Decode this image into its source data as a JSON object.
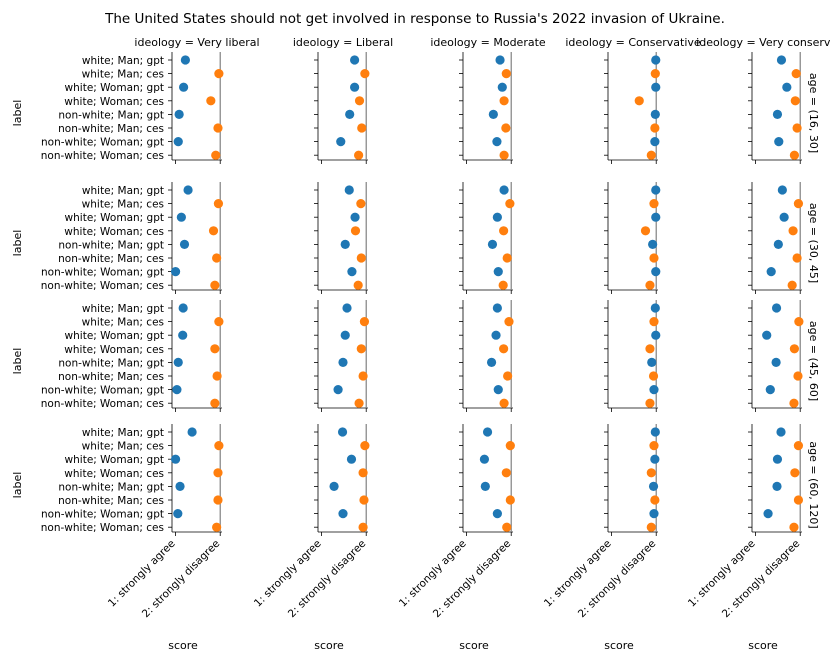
{
  "chart_data": {
    "type": "scatter",
    "title": "The United States should not get involved in response to Russia's 2022 invasion of Ukraine.",
    "ylabel": "label",
    "xlabel": "score",
    "xlim": [
      1,
      2
    ],
    "x_ticks": [
      {
        "value": 1,
        "label": "1: strongly agree"
      },
      {
        "value": 2,
        "label": "2: strongly disagree"
      }
    ],
    "reference_line_x": 2,
    "column_prefix": "ideology = ",
    "row_prefix": "age = ",
    "columns": [
      "Very liberal",
      "Liberal",
      "Moderate",
      "Conservative",
      "Very conservative"
    ],
    "rows": [
      "(16, 30]",
      "(30, 45]",
      "(45, 60]",
      "(60, 120]"
    ],
    "labels": [
      "white; Man; gpt",
      "white; Man; ces",
      "white; Woman; gpt",
      "white; Woman; ces",
      "non-white; Man; gpt",
      "non-white; Man; ces",
      "non-white; Woman; gpt",
      "non-white; Woman; ces"
    ],
    "series": [
      {
        "name": "gpt",
        "color": "#1f77b4"
      },
      {
        "name": "ces",
        "color": "#ff7f0e"
      }
    ],
    "values": [
      [
        [
          {
            "x": 1.22,
            "err": 0.03
          },
          {
            "x": 1.97,
            "err": 0.02
          },
          {
            "x": 1.18,
            "err": 0.03
          },
          {
            "x": 1.79,
            "err": 0.03
          },
          {
            "x": 1.08,
            "err": 0.02
          },
          {
            "x": 1.95,
            "err": 0.02
          },
          {
            "x": 1.06,
            "err": 0.02
          },
          {
            "x": 1.9,
            "err": 0.03
          }
        ],
        [
          {
            "x": 1.74,
            "err": 0.04
          },
          {
            "x": 1.97,
            "err": 0.02
          },
          {
            "x": 1.74,
            "err": 0.03
          },
          {
            "x": 1.85,
            "err": 0.03
          },
          {
            "x": 1.63,
            "err": 0.04
          },
          {
            "x": 1.9,
            "err": 0.02
          },
          {
            "x": 1.43,
            "err": 0.04
          },
          {
            "x": 1.83,
            "err": 0.03
          }
        ],
        [
          {
            "x": 1.75,
            "err": 0.04
          },
          {
            "x": 1.89,
            "err": 0.03
          },
          {
            "x": 1.8,
            "err": 0.03
          },
          {
            "x": 1.84,
            "err": 0.03
          },
          {
            "x": 1.6,
            "err": 0.04
          },
          {
            "x": 1.88,
            "err": 0.02
          },
          {
            "x": 1.68,
            "err": 0.04
          },
          {
            "x": 1.84,
            "err": 0.03
          }
        ],
        [
          {
            "x": 1.99,
            "err": 0.01
          },
          {
            "x": 1.98,
            "err": 0.02
          },
          {
            "x": 1.99,
            "err": 0.01
          },
          {
            "x": 1.62,
            "err": 0.08
          },
          {
            "x": 1.98,
            "err": 0.01
          },
          {
            "x": 1.97,
            "err": 0.02
          },
          {
            "x": 1.97,
            "err": 0.01
          },
          {
            "x": 1.89,
            "err": 0.03
          }
        ],
        [
          {
            "x": 1.58,
            "err": 0.04
          },
          {
            "x": 1.91,
            "err": 0.05
          },
          {
            "x": 1.7,
            "err": 0.04
          },
          {
            "x": 1.89,
            "err": 0.05
          },
          {
            "x": 1.49,
            "err": 0.04
          },
          {
            "x": 1.93,
            "err": 0.03
          },
          {
            "x": 1.52,
            "err": 0.04
          },
          {
            "x": 1.87,
            "err": 0.03
          }
        ]
      ],
      [
        [
          {
            "x": 1.28,
            "err": 0.04
          },
          {
            "x": 1.96,
            "err": 0.02
          },
          {
            "x": 1.13,
            "err": 0.02
          },
          {
            "x": 1.85,
            "err": 0.03
          },
          {
            "x": 1.2,
            "err": 0.03
          },
          {
            "x": 1.92,
            "err": 0.02
          },
          {
            "x": 1.0,
            "err": 0.02
          },
          {
            "x": 1.88,
            "err": 0.03
          }
        ],
        [
          {
            "x": 1.62,
            "err": 0.04
          },
          {
            "x": 1.88,
            "err": 0.02
          },
          {
            "x": 1.75,
            "err": 0.03
          },
          {
            "x": 1.76,
            "err": 0.03
          },
          {
            "x": 1.53,
            "err": 0.03
          },
          {
            "x": 1.89,
            "err": 0.02
          },
          {
            "x": 1.68,
            "err": 0.03
          },
          {
            "x": 1.82,
            "err": 0.03
          }
        ],
        [
          {
            "x": 1.84,
            "err": 0.03
          },
          {
            "x": 1.97,
            "err": 0.02
          },
          {
            "x": 1.69,
            "err": 0.03
          },
          {
            "x": 1.83,
            "err": 0.03
          },
          {
            "x": 1.58,
            "err": 0.03
          },
          {
            "x": 1.91,
            "err": 0.02
          },
          {
            "x": 1.71,
            "err": 0.03
          },
          {
            "x": 1.82,
            "err": 0.03
          }
        ],
        [
          {
            "x": 1.99,
            "err": 0.01
          },
          {
            "x": 1.95,
            "err": 0.02
          },
          {
            "x": 1.99,
            "err": 0.01
          },
          {
            "x": 1.76,
            "err": 0.03
          },
          {
            "x": 1.92,
            "err": 0.01
          },
          {
            "x": 1.95,
            "err": 0.02
          },
          {
            "x": 1.99,
            "err": 0.01
          },
          {
            "x": 1.86,
            "err": 0.03
          }
        ],
        [
          {
            "x": 1.6,
            "err": 0.04
          },
          {
            "x": 1.96,
            "err": 0.03
          },
          {
            "x": 1.64,
            "err": 0.04
          },
          {
            "x": 1.84,
            "err": 0.03
          },
          {
            "x": 1.51,
            "err": 0.04
          },
          {
            "x": 1.93,
            "err": 0.03
          },
          {
            "x": 1.35,
            "err": 0.04
          },
          {
            "x": 1.82,
            "err": 0.03
          }
        ]
      ],
      [
        [
          {
            "x": 1.17,
            "err": 0.02
          },
          {
            "x": 1.97,
            "err": 0.02
          },
          {
            "x": 1.16,
            "err": 0.02
          },
          {
            "x": 1.88,
            "err": 0.03
          },
          {
            "x": 1.06,
            "err": 0.02
          },
          {
            "x": 1.93,
            "err": 0.02
          },
          {
            "x": 1.03,
            "err": 0.02
          },
          {
            "x": 1.88,
            "err": 0.03
          }
        ],
        [
          {
            "x": 1.57,
            "err": 0.04
          },
          {
            "x": 1.96,
            "err": 0.02
          },
          {
            "x": 1.53,
            "err": 0.03
          },
          {
            "x": 1.89,
            "err": 0.02
          },
          {
            "x": 1.48,
            "err": 0.03
          },
          {
            "x": 1.93,
            "err": 0.02
          },
          {
            "x": 1.37,
            "err": 0.03
          },
          {
            "x": 1.84,
            "err": 0.03
          }
        ],
        [
          {
            "x": 1.69,
            "err": 0.04
          },
          {
            "x": 1.95,
            "err": 0.02
          },
          {
            "x": 1.66,
            "err": 0.04
          },
          {
            "x": 1.83,
            "err": 0.03
          },
          {
            "x": 1.56,
            "err": 0.04
          },
          {
            "x": 1.92,
            "err": 0.02
          },
          {
            "x": 1.71,
            "err": 0.03
          },
          {
            "x": 1.84,
            "err": 0.03
          }
        ],
        [
          {
            "x": 1.98,
            "err": 0.01
          },
          {
            "x": 1.95,
            "err": 0.02
          },
          {
            "x": 1.99,
            "err": 0.01
          },
          {
            "x": 1.86,
            "err": 0.03
          },
          {
            "x": 1.9,
            "err": 0.01
          },
          {
            "x": 1.94,
            "err": 0.02
          },
          {
            "x": 1.95,
            "err": 0.01
          },
          {
            "x": 1.86,
            "err": 0.03
          }
        ],
        [
          {
            "x": 1.47,
            "err": 0.03
          },
          {
            "x": 1.97,
            "err": 0.02
          },
          {
            "x": 1.25,
            "err": 0.03
          },
          {
            "x": 1.87,
            "err": 0.02
          },
          {
            "x": 1.46,
            "err": 0.03
          },
          {
            "x": 1.95,
            "err": 0.02
          },
          {
            "x": 1.33,
            "err": 0.03
          },
          {
            "x": 1.86,
            "err": 0.02
          }
        ]
      ],
      [
        [
          {
            "x": 1.37,
            "err": 0.05
          },
          {
            "x": 1.97,
            "err": 0.02
          },
          {
            "x": 1.0,
            "err": 0.02
          },
          {
            "x": 1.95,
            "err": 0.02
          },
          {
            "x": 1.1,
            "err": 0.02
          },
          {
            "x": 1.95,
            "err": 0.02
          },
          {
            "x": 1.05,
            "err": 0.02
          },
          {
            "x": 1.92,
            "err": 0.03
          }
        ],
        [
          {
            "x": 1.47,
            "err": 0.04
          },
          {
            "x": 1.97,
            "err": 0.02
          },
          {
            "x": 1.67,
            "err": 0.03
          },
          {
            "x": 1.93,
            "err": 0.02
          },
          {
            "x": 1.28,
            "err": 0.04
          },
          {
            "x": 1.95,
            "err": 0.02
          },
          {
            "x": 1.48,
            "err": 0.04
          },
          {
            "x": 1.93,
            "err": 0.02
          }
        ],
        [
          {
            "x": 1.47,
            "err": 0.04
          },
          {
            "x": 1.98,
            "err": 0.02
          },
          {
            "x": 1.4,
            "err": 0.03
          },
          {
            "x": 1.89,
            "err": 0.02
          },
          {
            "x": 1.42,
            "err": 0.03
          },
          {
            "x": 1.98,
            "err": 0.02
          },
          {
            "x": 1.69,
            "err": 0.04
          },
          {
            "x": 1.9,
            "err": 0.03
          }
        ],
        [
          {
            "x": 1.98,
            "err": 0.01
          },
          {
            "x": 1.95,
            "err": 0.02
          },
          {
            "x": 1.97,
            "err": 0.01
          },
          {
            "x": 1.89,
            "err": 0.02
          },
          {
            "x": 1.94,
            "err": 0.01
          },
          {
            "x": 1.97,
            "err": 0.02
          },
          {
            "x": 1.95,
            "err": 0.01
          },
          {
            "x": 1.89,
            "err": 0.03
          }
        ],
        [
          {
            "x": 1.57,
            "err": 0.04
          },
          {
            "x": 1.96,
            "err": 0.02
          },
          {
            "x": 1.49,
            "err": 0.03
          },
          {
            "x": 1.88,
            "err": 0.02
          },
          {
            "x": 1.48,
            "err": 0.03
          },
          {
            "x": 1.96,
            "err": 0.02
          },
          {
            "x": 1.28,
            "err": 0.03
          },
          {
            "x": 1.86,
            "err": 0.03
          }
        ]
      ]
    ]
  }
}
